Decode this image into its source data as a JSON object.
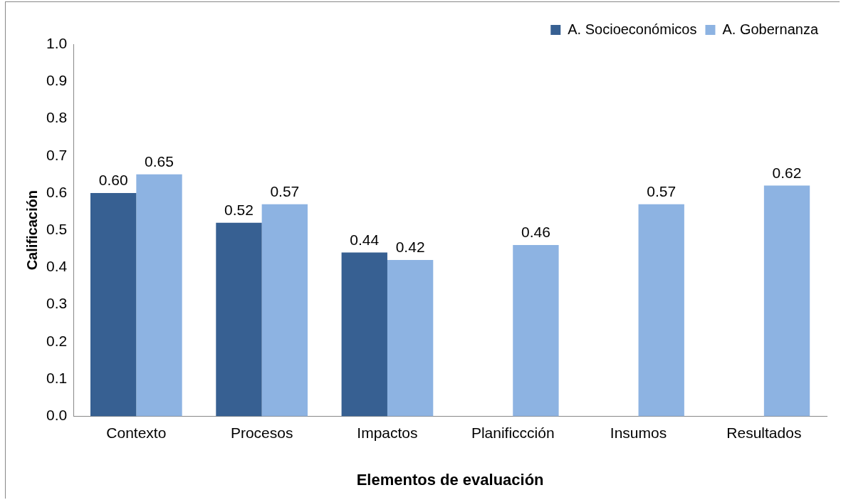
{
  "chart_data": {
    "type": "bar",
    "xlabel": "Elementos de evaluación",
    "ylabel": "Calificación",
    "categories": [
      "Contexto",
      "Procesos",
      "Impactos",
      "Planificcción",
      "Insumos",
      "Resultados"
    ],
    "series": [
      {
        "name": "A. Socioeconómicos",
        "color": "#376092",
        "values": [
          0.6,
          0.52,
          0.44,
          null,
          null,
          null
        ],
        "value_labels": [
          "0.60",
          "0.52",
          "0.44",
          null,
          null,
          null
        ]
      },
      {
        "name": "A. Gobernanza",
        "color": "#8db3e2",
        "values": [
          0.65,
          0.57,
          0.42,
          0.46,
          0.57,
          0.62
        ],
        "value_labels": [
          "0.65",
          "0.57",
          "0.42",
          "0.46",
          "0.57",
          "0.62"
        ]
      }
    ],
    "ylim": [
      0,
      1
    ],
    "yticks": [
      {
        "value": 0,
        "label": "0.0"
      },
      0.1,
      0.2,
      0.3,
      0.4,
      0.5,
      0.6,
      0.7,
      0.8,
      0.9,
      {
        "value": 1,
        "label": "1.0"
      }
    ],
    "grid": false,
    "legend": "top right"
  }
}
